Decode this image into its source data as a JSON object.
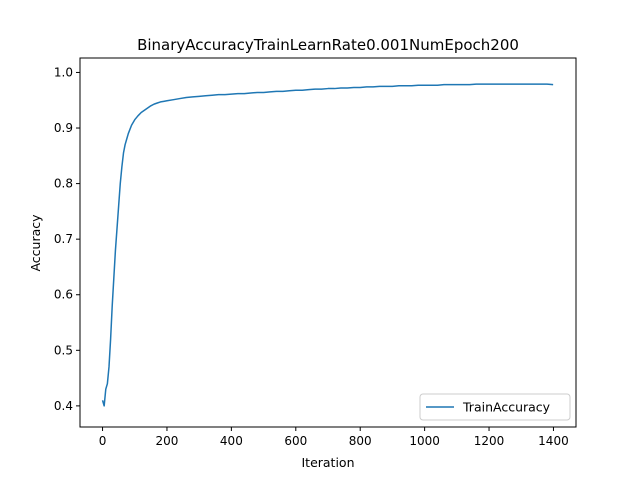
{
  "chart_data": {
    "type": "line",
    "title": "BinaryAccuracyTrainLearnRate0.001NumEpoch200",
    "xlabel": "Iteration",
    "ylabel": "Accuracy",
    "xlim": [
      -70,
      1470
    ],
    "ylim": [
      0.362,
      1.026
    ],
    "xticks": [
      0,
      200,
      400,
      600,
      800,
      1000,
      1200,
      1400
    ],
    "xtick_labels": [
      "0",
      "200",
      "400",
      "600",
      "800",
      "1000",
      "1200",
      "1400"
    ],
    "yticks": [
      0.4,
      0.5,
      0.6,
      0.7,
      0.8,
      0.9,
      1.0
    ],
    "ytick_labels": [
      "0.4",
      "0.5",
      "0.6",
      "0.7",
      "0.8",
      "0.9",
      "1.0"
    ],
    "grid": false,
    "legend": {
      "position": "lower-right",
      "entries": [
        "TrainAccuracy"
      ]
    },
    "series": [
      {
        "name": "TrainAccuracy",
        "color": "#1f77b4",
        "x": [
          0,
          5,
          10,
          15,
          20,
          25,
          30,
          35,
          40,
          45,
          50,
          55,
          60,
          65,
          70,
          75,
          80,
          90,
          100,
          110,
          120,
          130,
          140,
          150,
          160,
          170,
          180,
          190,
          200,
          220,
          240,
          260,
          280,
          300,
          320,
          340,
          360,
          380,
          400,
          420,
          440,
          460,
          480,
          500,
          520,
          540,
          560,
          580,
          600,
          620,
          640,
          660,
          680,
          700,
          720,
          740,
          760,
          780,
          800,
          820,
          840,
          860,
          880,
          900,
          920,
          940,
          960,
          980,
          1000,
          1020,
          1040,
          1060,
          1080,
          1100,
          1120,
          1140,
          1160,
          1180,
          1200,
          1220,
          1240,
          1260,
          1280,
          1300,
          1320,
          1340,
          1360,
          1380,
          1399
        ],
        "values": [
          0.41,
          0.4,
          0.43,
          0.44,
          0.47,
          0.52,
          0.58,
          0.63,
          0.68,
          0.72,
          0.76,
          0.8,
          0.83,
          0.855,
          0.87,
          0.88,
          0.89,
          0.905,
          0.915,
          0.922,
          0.928,
          0.932,
          0.936,
          0.94,
          0.943,
          0.945,
          0.947,
          0.948,
          0.949,
          0.951,
          0.953,
          0.955,
          0.956,
          0.957,
          0.958,
          0.959,
          0.96,
          0.96,
          0.961,
          0.962,
          0.962,
          0.963,
          0.964,
          0.964,
          0.965,
          0.966,
          0.966,
          0.967,
          0.968,
          0.968,
          0.969,
          0.97,
          0.97,
          0.971,
          0.971,
          0.972,
          0.972,
          0.973,
          0.973,
          0.974,
          0.974,
          0.975,
          0.975,
          0.975,
          0.976,
          0.976,
          0.976,
          0.977,
          0.977,
          0.977,
          0.977,
          0.978,
          0.978,
          0.978,
          0.978,
          0.978,
          0.979,
          0.979,
          0.979,
          0.979,
          0.979,
          0.979,
          0.979,
          0.979,
          0.979,
          0.979,
          0.979,
          0.979,
          0.978
        ]
      }
    ]
  }
}
